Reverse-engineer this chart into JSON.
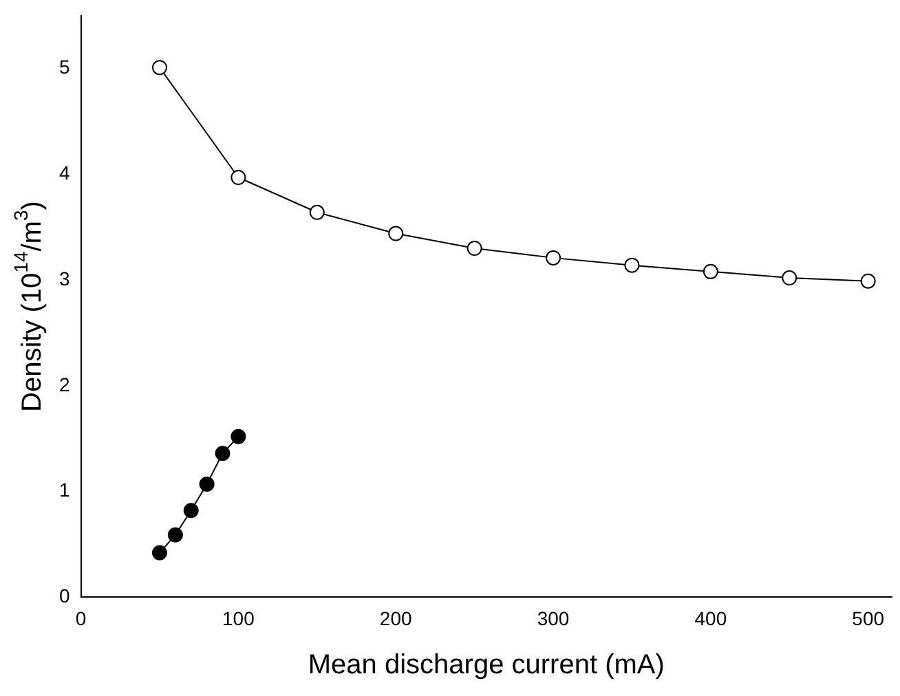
{
  "chart_data": {
    "type": "line",
    "xlabel": "Mean discharge current (mA)",
    "ylabel": "Density (10$^{14}$/m$^{3}$)",
    "xlim": [
      0,
      515
    ],
    "xticks": [
      0,
      100,
      200,
      300,
      400,
      500
    ],
    "ylim": [
      0,
      5.5
    ],
    "yticks": [
      0,
      1,
      2,
      3,
      4,
      5
    ],
    "grid": false,
    "legend": false,
    "line_style": "solid",
    "series": [
      {
        "color": "#ffffff",
        "marker": "circle",
        "x": [
          50,
          100,
          150,
          200,
          250,
          300,
          350,
          400,
          450,
          500
        ],
        "values": [
          5.01,
          3.97,
          3.64,
          3.44,
          3.3,
          3.21,
          3.14,
          3.08,
          3.02,
          2.99
        ]
      },
      {
        "color": "#000000",
        "marker": "circle",
        "x": [
          50,
          60,
          70,
          80,
          90,
          100
        ],
        "values": [
          0.42,
          0.59,
          0.82,
          1.07,
          1.36,
          1.52
        ]
      }
    ]
  }
}
